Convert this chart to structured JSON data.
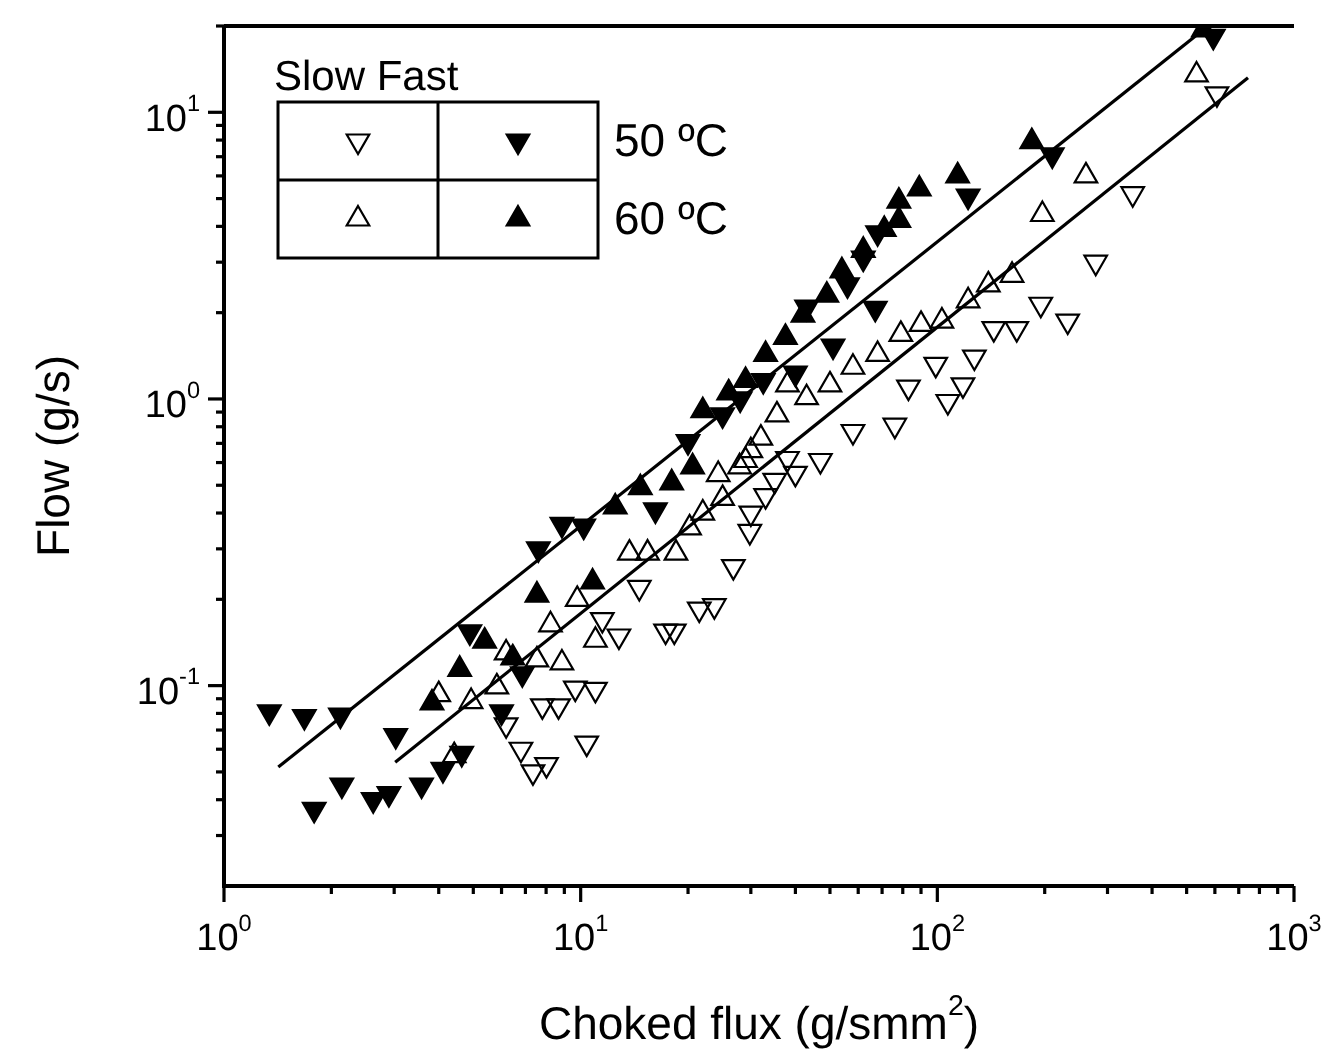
{
  "chart_data": {
    "type": "scatter",
    "xlabel": "Choked flux (g/smm$^{2}$)",
    "ylabel": "Flow (g/s)",
    "log": "xy",
    "legend": "top left",
    "legend_title": "Slow Fast",
    "xlim": [
      1,
      1000
    ],
    "ylim": [
      0.02,
      20
    ],
    "xticks": [
      {
        "value": 1,
        "label": "10$^{0}$"
      },
      {
        "value": 2,
        "label": null
      },
      {
        "value": 3,
        "label": null
      },
      {
        "value": 4,
        "label": null
      },
      {
        "value": 5,
        "label": null
      },
      {
        "value": 6,
        "label": null
      },
      {
        "value": 7,
        "label": null
      },
      {
        "value": 8,
        "label": null
      },
      {
        "value": 9,
        "label": null
      },
      {
        "value": 10,
        "label": "10$^{1}$"
      },
      {
        "value": 20,
        "label": null
      },
      {
        "value": 30,
        "label": null
      },
      {
        "value": 40,
        "label": null
      },
      {
        "value": 50,
        "label": null
      },
      {
        "value": 60,
        "label": null
      },
      {
        "value": 70,
        "label": null
      },
      {
        "value": 80,
        "label": null
      },
      {
        "value": 90,
        "label": null
      },
      {
        "value": 100,
        "label": "10$^{2}$"
      },
      {
        "value": 200,
        "label": null
      },
      {
        "value": 300,
        "label": null
      },
      {
        "value": 400,
        "label": null
      },
      {
        "value": 500,
        "label": null
      },
      {
        "value": 600,
        "label": null
      },
      {
        "value": 700,
        "label": null
      },
      {
        "value": 800,
        "label": null
      },
      {
        "value": 900,
        "label": null
      },
      {
        "value": 1000,
        "label": "10$^{3}$"
      }
    ],
    "yticks": [
      {
        "value": 0.03,
        "label": null
      },
      {
        "value": 0.04,
        "label": null
      },
      {
        "value": 0.05,
        "label": null
      },
      {
        "value": 0.06,
        "label": null
      },
      {
        "value": 0.07,
        "label": null
      },
      {
        "value": 0.08,
        "label": null
      },
      {
        "value": 0.09,
        "label": null
      },
      {
        "value": 0.1,
        "label": "10$^{-1}$"
      },
      {
        "value": 0.2,
        "label": null
      },
      {
        "value": 0.3,
        "label": null
      },
      {
        "value": 0.4,
        "label": null
      },
      {
        "value": 0.5,
        "label": null
      },
      {
        "value": 0.6,
        "label": null
      },
      {
        "value": 0.7,
        "label": null
      },
      {
        "value": 0.8,
        "label": null
      },
      {
        "value": 0.9,
        "label": null
      },
      {
        "value": 1,
        "label": "10$^{0}$"
      },
      {
        "value": 2,
        "label": null
      },
      {
        "value": 3,
        "label": null
      },
      {
        "value": 4,
        "label": null
      },
      {
        "value": 5,
        "label": null
      },
      {
        "value": 6,
        "label": null
      },
      {
        "value": 7,
        "label": null
      },
      {
        "value": 8,
        "label": null
      },
      {
        "value": 9,
        "label": null
      },
      {
        "value": 10,
        "label": "10$^{1}$"
      },
      {
        "value": 20,
        "label": null
      }
    ],
    "series": [
      {
        "color": "#000000",
        "marker": "triangle-down-open",
        "x": [
          6.18,
          6.8,
          7.35,
          8.02,
          7.81,
          8.67,
          9.66,
          11.0,
          10.4,
          11.5,
          12.8,
          14.6,
          17.3,
          18.3,
          21.5,
          23.7,
          26.8,
          29.8,
          30,
          35,
          38,
          40,
          33,
          47,
          58,
          76,
          83,
          107,
          99,
          118,
          127,
          144,
          167,
          232,
          195,
          278,
          353,
          608
        ],
        "values": [
          0.073,
          0.06,
          0.05,
          0.053,
          0.085,
          0.085,
          0.098,
          0.097,
          0.063,
          0.17,
          0.149,
          0.22,
          0.155,
          0.155,
          0.185,
          0.19,
          0.26,
          0.345,
          0.4,
          0.52,
          0.62,
          0.55,
          0.46,
          0.61,
          0.77,
          0.81,
          1.1,
          0.98,
          1.32,
          1.12,
          1.4,
          1.76,
          1.76,
          1.87,
          2.14,
          3.0,
          5.2,
          11.6
        ]
      },
      {
        "name": "50 ºC",
        "color": "#000000",
        "marker": "triangle-down",
        "x": [
          1.34,
          1.68,
          2.12,
          1.79,
          2.14,
          2.62,
          2.9,
          3.03,
          3.58,
          4.11,
          4.64,
          4.89,
          6.0,
          6.86,
          7.61,
          8.86,
          10.2,
          16.2,
          20,
          25,
          28,
          32.5,
          40,
          43,
          51,
          56,
          62,
          67,
          68,
          122,
          210,
          594
        ],
        "values": [
          0.081,
          0.078,
          0.079,
          0.037,
          0.045,
          0.04,
          0.042,
          0.067,
          0.045,
          0.051,
          0.058,
          0.154,
          0.081,
          0.11,
          0.3,
          0.365,
          0.36,
          0.41,
          0.71,
          0.88,
          1.0,
          1.16,
          1.23,
          2.09,
          1.53,
          2.5,
          3.1,
          2.07,
          3.8,
          5.1,
          7.1,
          18.4
        ]
      },
      {
        "color": "#000000",
        "marker": "triangle-open",
        "x": [
          4.0,
          4.93,
          5.82,
          4.42,
          6.18,
          7.54,
          8.86,
          8.23,
          9.78,
          11.0,
          13.7,
          15.4,
          18.5,
          20.2,
          22,
          25,
          24.3,
          27.9,
          30,
          29,
          32,
          35.5,
          38,
          43,
          50,
          58,
          68,
          79,
          90,
          103,
          122,
          139,
          162,
          197,
          261,
          533
        ],
        "values": [
          0.093,
          0.088,
          0.099,
          0.057,
          0.13,
          0.123,
          0.12,
          0.163,
          0.2,
          0.144,
          0.29,
          0.29,
          0.29,
          0.355,
          0.4,
          0.45,
          0.545,
          0.58,
          0.66,
          0.61,
          0.73,
          0.88,
          1.12,
          1.01,
          1.12,
          1.29,
          1.43,
          1.68,
          1.82,
          1.87,
          2.2,
          2.5,
          2.7,
          4.4,
          6.0,
          13.5
        ]
      },
      {
        "name": "60 ºC",
        "color": "#000000",
        "marker": "triangle",
        "x": [
          3.83,
          4.58,
          5.38,
          6.45,
          7.54,
          10.8,
          12.5,
          14.7,
          18.0,
          20.6,
          22,
          26,
          29,
          33,
          37.5,
          42,
          49,
          54,
          62,
          71,
          78,
          78,
          89,
          114,
          184,
          557
        ],
        "values": [
          0.087,
          0.114,
          0.143,
          0.125,
          0.207,
          0.23,
          0.42,
          0.49,
          0.51,
          0.58,
          0.91,
          1.05,
          1.16,
          1.43,
          1.64,
          1.96,
          2.3,
          2.8,
          3.3,
          3.9,
          4.2,
          4.9,
          5.4,
          6.0,
          7.9,
          19.4
        ]
      },
      {
        "type": "line",
        "color": "#000000",
        "marker": "none",
        "line_style": "solid",
        "x": [
          1.42,
          557
        ],
        "values": [
          0.052,
          19.4
        ]
      },
      {
        "type": "line",
        "color": "#000000",
        "marker": "none",
        "line_style": "solid",
        "x": [
          3.02,
          743
        ],
        "values": [
          0.054,
          13.2
        ]
      }
    ]
  }
}
